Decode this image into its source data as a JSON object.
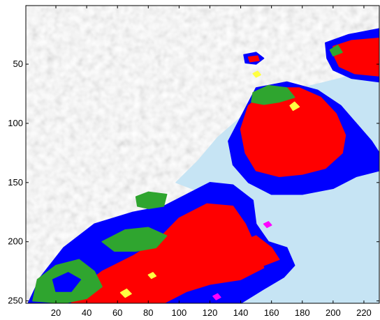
{
  "chart_data": {
    "type": "heatmap",
    "title": "",
    "xlabel": "",
    "ylabel": "",
    "xlim": [
      0.5,
      230
    ],
    "ylim": [
      252,
      0.5
    ],
    "y_reversed": true,
    "x_ticks": [
      20,
      40,
      60,
      80,
      100,
      120,
      140,
      160,
      180,
      200,
      220
    ],
    "y_ticks": [
      50,
      100,
      150,
      200,
      250
    ],
    "x_tick_labels": [
      "20",
      "40",
      "60",
      "80",
      "100",
      "120",
      "140",
      "160",
      "180",
      "200",
      "220"
    ],
    "y_tick_labels": [
      "50",
      "100",
      "150",
      "200",
      "250"
    ],
    "grid": false,
    "classes": [
      {
        "key": "land",
        "color": "#c2c2c2"
      },
      {
        "key": "water",
        "color": "#c6e4f4"
      },
      {
        "key": "class_red",
        "color": "#ff0000"
      },
      {
        "key": "class_blue",
        "color": "#0000ff"
      },
      {
        "key": "class_green",
        "color": "#2fa52f"
      },
      {
        "key": "class_yellow",
        "color": "#ffff40"
      },
      {
        "key": "class_magenta",
        "color": "#ff00ff"
      }
    ],
    "regions": [
      {
        "class": "water",
        "points": [
          [
            100,
            252
          ],
          [
            115,
            240
          ],
          [
            135,
            215
          ],
          [
            140,
            192
          ],
          [
            150,
            165
          ],
          [
            160,
            132
          ],
          [
            172,
            110
          ],
          [
            195,
            82
          ],
          [
            225,
            55
          ],
          [
            230,
            50
          ],
          [
            230,
            252
          ]
        ]
      },
      {
        "class": "water",
        "points": [
          [
            98,
            150
          ],
          [
            112,
            132
          ],
          [
            125,
            112
          ],
          [
            140,
            95
          ],
          [
            160,
            78
          ],
          [
            180,
            70
          ],
          [
            205,
            62
          ],
          [
            225,
            52
          ],
          [
            230,
            55
          ],
          [
            230,
            110
          ],
          [
            200,
            150
          ],
          [
            170,
            170
          ],
          [
            140,
            170
          ],
          [
            118,
            160
          ]
        ]
      },
      {
        "class": "class_blue",
        "points": [
          [
            140,
            95
          ],
          [
            150,
            70
          ],
          [
            170,
            65
          ],
          [
            190,
            72
          ],
          [
            205,
            85
          ],
          [
            215,
            100
          ],
          [
            225,
            115
          ],
          [
            230,
            125
          ],
          [
            230,
            140
          ],
          [
            215,
            145
          ],
          [
            200,
            155
          ],
          [
            180,
            160
          ],
          [
            160,
            160
          ],
          [
            145,
            150
          ],
          [
            135,
            135
          ],
          [
            132,
            115
          ]
        ]
      },
      {
        "class": "class_red",
        "points": [
          [
            145,
            85
          ],
          [
            160,
            70
          ],
          [
            178,
            70
          ],
          [
            192,
            78
          ],
          [
            202,
            92
          ],
          [
            208,
            110
          ],
          [
            206,
            125
          ],
          [
            195,
            138
          ],
          [
            180,
            143
          ],
          [
            165,
            145
          ],
          [
            150,
            140
          ],
          [
            143,
            125
          ],
          [
            140,
            105
          ]
        ]
      },
      {
        "class": "class_green",
        "points": [
          [
            148,
            74
          ],
          [
            158,
            68
          ],
          [
            170,
            70
          ],
          [
            175,
            78
          ],
          [
            165,
            82
          ],
          [
            155,
            84
          ],
          [
            147,
            82
          ]
        ]
      },
      {
        "class": "class_blue",
        "points": [
          [
            142,
            42
          ],
          [
            150,
            40
          ],
          [
            155,
            45
          ],
          [
            150,
            50
          ],
          [
            143,
            49
          ]
        ]
      },
      {
        "class": "class_red",
        "points": [
          [
            145,
            44
          ],
          [
            151,
            43
          ],
          [
            152,
            47
          ],
          [
            146,
            48
          ]
        ]
      },
      {
        "class": "class_blue",
        "points": [
          [
            195,
            32
          ],
          [
            210,
            25
          ],
          [
            230,
            20
          ],
          [
            230,
            65
          ],
          [
            212,
            62
          ],
          [
            200,
            55
          ],
          [
            196,
            45
          ]
        ]
      },
      {
        "class": "class_red",
        "points": [
          [
            200,
            35
          ],
          [
            212,
            30
          ],
          [
            230,
            28
          ],
          [
            230,
            60
          ],
          [
            214,
            58
          ],
          [
            204,
            52
          ],
          [
            201,
            44
          ]
        ]
      },
      {
        "class": "class_green",
        "points": [
          [
            198,
            38
          ],
          [
            203,
            34
          ],
          [
            206,
            40
          ],
          [
            200,
            43
          ]
        ]
      },
      {
        "class": "class_blue",
        "points": [
          [
            2,
            252
          ],
          [
            10,
            230
          ],
          [
            25,
            205
          ],
          [
            45,
            185
          ],
          [
            70,
            175
          ],
          [
            90,
            170
          ],
          [
            105,
            160
          ],
          [
            120,
            150
          ],
          [
            135,
            152
          ],
          [
            148,
            165
          ],
          [
            150,
            185
          ],
          [
            158,
            200
          ],
          [
            170,
            205
          ],
          [
            175,
            220
          ],
          [
            168,
            230
          ],
          [
            155,
            240
          ],
          [
            145,
            248
          ],
          [
            140,
            252
          ]
        ]
      },
      {
        "class": "class_red",
        "points": [
          [
            30,
            252
          ],
          [
            35,
            240
          ],
          [
            50,
            225
          ],
          [
            70,
            212
          ],
          [
            85,
            200
          ],
          [
            100,
            180
          ],
          [
            118,
            168
          ],
          [
            135,
            170
          ],
          [
            143,
            185
          ],
          [
            150,
            205
          ],
          [
            155,
            222
          ],
          [
            140,
            232
          ],
          [
            120,
            236
          ],
          [
            105,
            242
          ],
          [
            90,
            252
          ]
        ]
      },
      {
        "class": "class_red",
        "points": [
          [
            140,
            200
          ],
          [
            150,
            195
          ],
          [
            160,
            205
          ],
          [
            165,
            215
          ],
          [
            155,
            220
          ],
          [
            145,
            215
          ]
        ]
      },
      {
        "class": "class_green",
        "points": [
          [
            5,
            250
          ],
          [
            8,
            232
          ],
          [
            20,
            220
          ],
          [
            35,
            215
          ],
          [
            45,
            225
          ],
          [
            50,
            238
          ],
          [
            40,
            248
          ],
          [
            25,
            252
          ]
        ]
      },
      {
        "class": "class_green",
        "points": [
          [
            50,
            200
          ],
          [
            65,
            190
          ],
          [
            80,
            188
          ],
          [
            92,
            195
          ],
          [
            85,
            205
          ],
          [
            72,
            208
          ],
          [
            58,
            208
          ]
        ]
      },
      {
        "class": "class_green",
        "points": [
          [
            72,
            162
          ],
          [
            80,
            158
          ],
          [
            92,
            160
          ],
          [
            90,
            170
          ],
          [
            80,
            172
          ],
          [
            73,
            170
          ]
        ]
      },
      {
        "class": "class_blue",
        "points": [
          [
            18,
            232
          ],
          [
            28,
            226
          ],
          [
            36,
            232
          ],
          [
            30,
            242
          ],
          [
            20,
            242
          ]
        ]
      },
      {
        "class": "class_yellow",
        "points": [
          [
            62,
            243
          ],
          [
            66,
            240
          ],
          [
            69,
            244
          ],
          [
            65,
            247
          ]
        ]
      },
      {
        "class": "class_yellow",
        "points": [
          [
            172,
            85
          ],
          [
            175,
            82
          ],
          [
            178,
            86
          ],
          [
            174,
            89
          ]
        ]
      },
      {
        "class": "class_yellow",
        "points": [
          [
            80,
            228
          ],
          [
            83,
            226
          ],
          [
            85,
            229
          ],
          [
            82,
            231
          ]
        ]
      },
      {
        "class": "class_yellow",
        "points": [
          [
            148,
            58
          ],
          [
            151,
            56
          ],
          [
            153,
            59
          ],
          [
            150,
            61
          ]
        ]
      },
      {
        "class": "class_magenta",
        "points": [
          [
            155,
            185
          ],
          [
            158,
            183
          ],
          [
            160,
            186
          ],
          [
            157,
            188
          ]
        ]
      },
      {
        "class": "class_magenta",
        "points": [
          [
            122,
            246
          ],
          [
            125,
            244
          ],
          [
            127,
            247
          ],
          [
            124,
            249
          ]
        ]
      }
    ]
  }
}
